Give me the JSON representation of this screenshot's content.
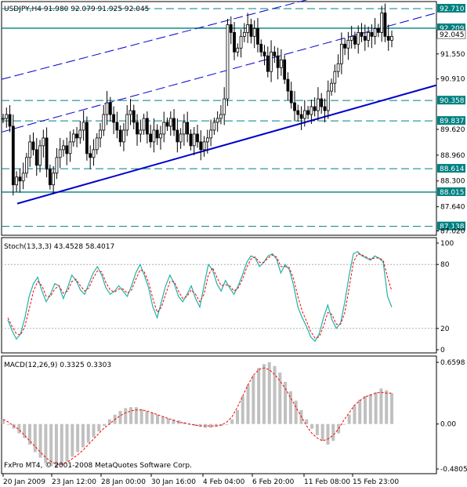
{
  "window": {
    "header": "USDJPY,H4  91.980 92.079 91.925 92.045",
    "copyright": "FxPro MT4, © 2001-2008 MetaQuotes Software Corp."
  },
  "colors": {
    "background": "#ffffff",
    "axis": "#000000",
    "candle": "#000000",
    "channel_solid": "#0000cc",
    "channel_dashed": "#0000cc",
    "level_line": "#008080",
    "stoch_main": "#20b2aa",
    "stoch_signal": "#ff0000",
    "macd_hist": "#c0c0c0",
    "macd_signal": "#ff0000",
    "price_label_bg": "#008080"
  },
  "price_panel": {
    "ticks": [
      "92.710",
      "92.209",
      "92.045",
      "91.550",
      "90.910",
      "90.358",
      "89.837",
      "89.620",
      "88.960",
      "88.614",
      "88.300",
      "88.015",
      "87.640",
      "87.138",
      "87.020"
    ],
    "highlighted_levels": [
      "92.710",
      "92.209",
      "90.358",
      "89.837",
      "88.614",
      "88.015",
      "87.138"
    ],
    "current_price": "92.045"
  },
  "stoch_panel": {
    "title": "Stoch(13,3,3) 43.4528 58.4017",
    "ticks": [
      "100",
      "80",
      "20",
      "0"
    ]
  },
  "macd_panel": {
    "title": "MACD(12,26,9) 0.3325 0.3303",
    "ticks": [
      "0.6598",
      "0.00",
      "-0.4805"
    ]
  },
  "time_axis": [
    "20 Jan 2009",
    "23 Jan 12:00",
    "28 Jan 00:00",
    "30 Jan 16:00",
    "4 Feb 04:00",
    "6 Feb 20:00",
    "11 Feb 08:00",
    "15 Feb 23:00"
  ],
  "chart_data": {
    "type": "candlestick",
    "symbol": "USDJPY",
    "timeframe": "H4",
    "ohlc_last": {
      "open": 91.98,
      "high": 92.079,
      "low": 91.925,
      "close": 92.045
    },
    "price_close_path": [
      89.9,
      90.0,
      89.7,
      88.2,
      88.4,
      88.3,
      88.5,
      88.9,
      89.3,
      89.1,
      88.7,
      89.2,
      89.4,
      88.6,
      88.2,
      88.5,
      88.9,
      89.1,
      89.2,
      89.0,
      89.3,
      89.5,
      89.4,
      89.6,
      89.8,
      89.0,
      88.9,
      89.1,
      89.4,
      89.6,
      90.0,
      90.3,
      90.0,
      89.8,
      89.6,
      89.3,
      89.6,
      90.0,
      90.1,
      89.8,
      89.5,
      89.6,
      89.9,
      89.5,
      89.3,
      89.6,
      89.4,
      89.5,
      89.8,
      89.7,
      89.9,
      89.6,
      89.3,
      89.5,
      89.8,
      89.5,
      89.2,
      89.5,
      89.3,
      89.1,
      89.3,
      89.4,
      89.6,
      89.8,
      89.9,
      90.0,
      90.4,
      92.3,
      92.1,
      91.6,
      91.7,
      92.0,
      92.1,
      92.3,
      92.0,
      92.2,
      91.8,
      91.6,
      91.5,
      91.1,
      91.6,
      91.5,
      91.2,
      91.4,
      90.9,
      90.6,
      90.3,
      90.1,
      90.0,
      89.9,
      90.1,
      90.0,
      90.2,
      90.1,
      90.4,
      90.2,
      90.1,
      90.6,
      90.8,
      91.1,
      91.3,
      91.8,
      91.7,
      91.9,
      92.0,
      91.8,
      92.1,
      92.0,
      91.9,
      92.1,
      92.0,
      92.2,
      92.1,
      92.6,
      92.0,
      91.9,
      92.0
    ],
    "stoch_main": [
      28,
      18,
      10,
      15,
      30,
      50,
      62,
      68,
      55,
      45,
      52,
      62,
      60,
      48,
      58,
      70,
      65,
      56,
      52,
      62,
      72,
      78,
      70,
      58,
      52,
      55,
      60,
      55,
      50,
      60,
      72,
      80,
      70,
      58,
      40,
      30,
      45,
      60,
      70,
      62,
      50,
      45,
      52,
      60,
      48,
      40,
      60,
      80,
      75,
      62,
      55,
      65,
      58,
      52,
      60,
      70,
      82,
      88,
      86,
      78,
      82,
      88,
      90,
      85,
      72,
      80,
      75,
      60,
      40,
      30,
      22,
      12,
      8,
      15,
      30,
      42,
      28,
      20,
      25,
      45,
      70,
      90,
      92,
      88,
      86,
      84,
      88,
      86,
      82,
      50,
      40
    ],
    "stoch_signal": [
      30,
      22,
      15,
      14,
      22,
      38,
      55,
      64,
      60,
      50,
      50,
      57,
      60,
      53,
      55,
      64,
      66,
      60,
      55,
      58,
      67,
      74,
      73,
      63,
      56,
      54,
      57,
      57,
      53,
      56,
      66,
      75,
      73,
      63,
      48,
      35,
      40,
      52,
      64,
      64,
      55,
      48,
      50,
      56,
      52,
      45,
      52,
      70,
      77,
      68,
      60,
      61,
      60,
      55,
      58,
      66,
      77,
      85,
      87,
      82,
      82,
      86,
      89,
      87,
      78,
      78,
      77,
      66,
      50,
      36,
      27,
      17,
      11,
      12,
      22,
      35,
      33,
      24,
      24,
      35,
      58,
      82,
      90,
      89,
      87,
      85,
      86,
      86,
      84,
      68,
      55
    ],
    "macd_hist": [
      0.05,
      0.0,
      -0.05,
      -0.1,
      -0.15,
      -0.22,
      -0.3,
      -0.36,
      -0.42,
      -0.45,
      -0.47,
      -0.44,
      -0.4,
      -0.35,
      -0.3,
      -0.25,
      -0.2,
      -0.14,
      -0.08,
      -0.02,
      0.05,
      0.1,
      0.14,
      0.17,
      0.18,
      0.18,
      0.16,
      0.14,
      0.12,
      0.1,
      0.08,
      0.06,
      0.05,
      0.04,
      0.02,
      0.0,
      -0.02,
      -0.03,
      -0.04,
      -0.04,
      -0.03,
      -0.02,
      0.0,
      0.05,
      0.15,
      0.3,
      0.42,
      0.52,
      0.6,
      0.64,
      0.66,
      0.62,
      0.55,
      0.45,
      0.35,
      0.25,
      0.15,
      0.05,
      -0.05,
      -0.12,
      -0.18,
      -0.22,
      -0.18,
      -0.1,
      0.0,
      0.1,
      0.2,
      0.26,
      0.3,
      0.32,
      0.34,
      0.38,
      0.36,
      0.33
    ],
    "macd_signal": [
      0.05,
      0.02,
      -0.02,
      -0.06,
      -0.12,
      -0.18,
      -0.24,
      -0.3,
      -0.36,
      -0.4,
      -0.43,
      -0.43,
      -0.41,
      -0.37,
      -0.33,
      -0.28,
      -0.22,
      -0.16,
      -0.1,
      -0.04,
      0.0,
      0.05,
      0.09,
      0.12,
      0.14,
      0.15,
      0.15,
      0.14,
      0.12,
      0.1,
      0.08,
      0.06,
      0.04,
      0.02,
      0.01,
      0.0,
      -0.01,
      -0.02,
      -0.02,
      -0.02,
      -0.02,
      -0.01,
      0.02,
      0.08,
      0.18,
      0.3,
      0.42,
      0.52,
      0.58,
      0.6,
      0.58,
      0.53,
      0.46,
      0.38,
      0.28,
      0.18,
      0.08,
      -0.02,
      -0.1,
      -0.15,
      -0.18,
      -0.16,
      -0.12,
      -0.05,
      0.04,
      0.12,
      0.2,
      0.25,
      0.29,
      0.31,
      0.33,
      0.34,
      0.33,
      0.33
    ]
  }
}
